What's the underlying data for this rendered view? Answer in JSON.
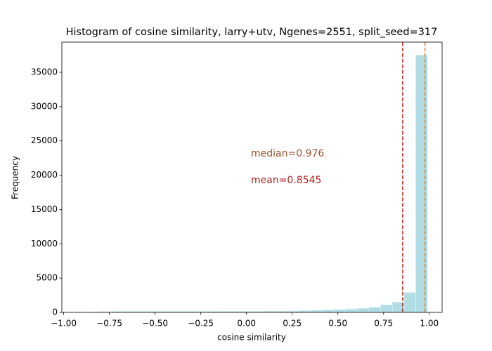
{
  "chart_data": {
    "type": "histogram",
    "title": "Histogram of cosine similarity, larry+utv, Ngenes=2551, split_seed=317",
    "x_label": "cosine similarity",
    "y_label": "Frequency",
    "bins": [
      -0.93,
      -0.866,
      -0.802,
      -0.738,
      -0.674,
      -0.61,
      -0.546,
      -0.482,
      -0.418,
      -0.354,
      -0.29,
      -0.226,
      -0.162,
      -0.098,
      -0.034,
      0.03,
      0.094,
      0.158,
      0.222,
      0.286,
      0.35,
      0.414,
      0.478,
      0.542,
      0.606,
      0.67,
      0.734,
      0.798,
      0.862,
      0.926,
      0.99
    ],
    "values": [
      20,
      60,
      110,
      130,
      140,
      140,
      140,
      140,
      140,
      140,
      140,
      140,
      150,
      150,
      150,
      150,
      160,
      160,
      180,
      250,
      300,
      350,
      430,
      500,
      600,
      750,
      1100,
      1500,
      2900,
      37500
    ],
    "color": "#b0dde4",
    "edgecolor": "#d8eef1",
    "xlim": [
      -1.01,
      1.07
    ],
    "xticks": [
      {
        "value": -1,
        "label": "−1.00"
      },
      {
        "value": -0.75,
        "label": "−0.75"
      },
      {
        "value": -0.5,
        "label": "−0.50"
      },
      {
        "value": -0.25,
        "label": "−0.25"
      },
      {
        "value": 0,
        "label": "0.00"
      },
      {
        "value": 0.25,
        "label": "0.25"
      },
      {
        "value": 0.5,
        "label": "0.50"
      },
      {
        "value": 0.75,
        "label": "0.75"
      },
      {
        "value": 1,
        "label": "1.00"
      }
    ],
    "ylim": [
      0,
      39400
    ],
    "yticks": [
      0,
      5000,
      10000,
      15000,
      20000,
      25000,
      30000,
      35000
    ],
    "vlines": [
      {
        "value": 0.8545,
        "label": "mean=0.8545",
        "color": "#b22222"
      },
      {
        "value": 0.976,
        "label": "median=0.976",
        "color": "#cd853f",
        "text_color": "#a0522d"
      }
    ]
  }
}
